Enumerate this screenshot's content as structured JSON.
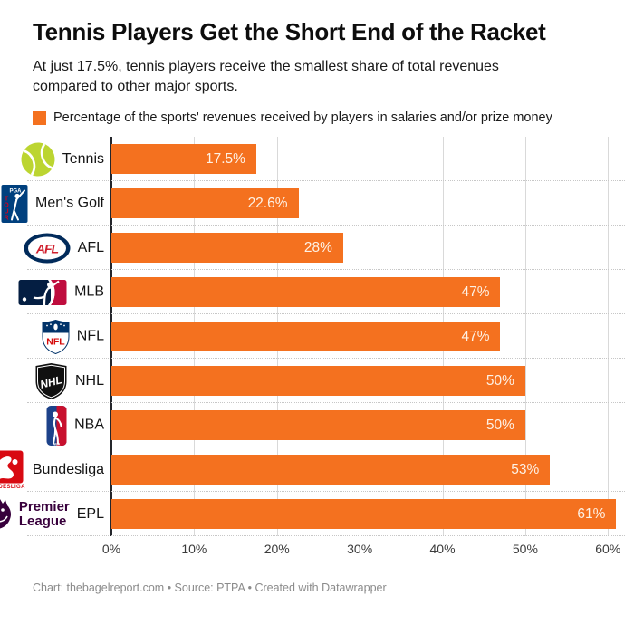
{
  "header": {
    "title": "Tennis Players Get the Short End of the Racket",
    "subtitle_line1": "At just 17.5%, tennis players receive the smallest share of total revenues",
    "subtitle_line2": "compared to other major sports.",
    "legend_label": "Percentage of the sports' revenues received by players in salaries and/or prize money"
  },
  "chart_data": {
    "type": "bar",
    "orientation": "horizontal",
    "title": "Tennis Players Get the Short End of the Racket",
    "categories": [
      "Tennis",
      "Men's Golf",
      "AFL",
      "MLB",
      "NFL",
      "NHL",
      "NBA",
      "Bundesliga",
      "EPL"
    ],
    "values": [
      17.5,
      22.6,
      28,
      47,
      47,
      50,
      50,
      53,
      61
    ],
    "value_labels": [
      "17.5%",
      "22.6%",
      "28%",
      "47%",
      "47%",
      "50%",
      "50%",
      "53%",
      "61%"
    ],
    "icons": [
      "tennis-ball-icon",
      "pga-tour-logo-icon",
      "afl-logo-icon",
      "mlb-logo-icon",
      "nfl-logo-icon",
      "nhl-logo-icon",
      "nba-logo-icon",
      "bundesliga-logo-icon",
      "premier-league-logo-icon"
    ],
    "x_ticks": [
      "0%",
      "10%",
      "20%",
      "30%",
      "40%",
      "50%",
      "60%"
    ],
    "x_tick_values": [
      0,
      10,
      20,
      30,
      40,
      50,
      60
    ],
    "xlim": [
      0,
      61.5
    ],
    "bar_color": "#F4711F",
    "value_label_color": "#FDF1E5",
    "grid": true,
    "legend_position": "top"
  },
  "logos": {
    "pga_top": "PGA",
    "pga_side": "TOUR",
    "afl": "AFL",
    "nfl": "NFL",
    "nhl": "NHL",
    "nba": "NBA",
    "bundesliga_caption": "BUNDESLIGA",
    "premier_line1": "Premier",
    "premier_line2": "League"
  },
  "footer": {
    "credit": "Chart: thebagelreport.com • Source: PTPA • Created with Datawrapper"
  }
}
